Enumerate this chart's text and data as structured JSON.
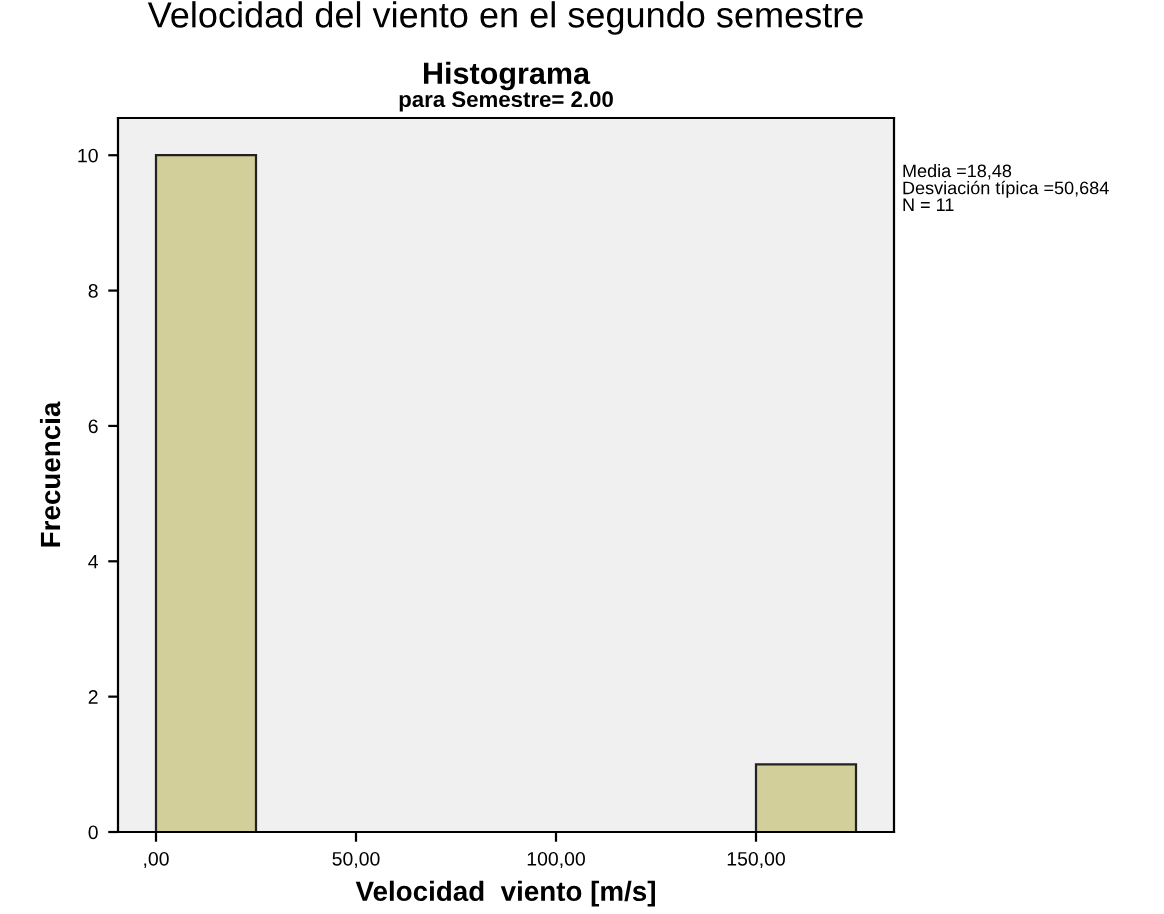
{
  "chart_data": {
    "type": "histogram",
    "title": "Histograma",
    "subtitle": "para Semestre= 2.00",
    "xlabel": "Velocidad  viento [m/s]",
    "ylabel": "Frecuencia",
    "annotations": [
      "Velocidad del viento en el segundo semestre",
      "Media =18,48\nDesviación típica =50,684\nN = 11"
    ],
    "bins": [
      0,
      25,
      50,
      75,
      100,
      125,
      150,
      175
    ],
    "values": [
      10,
      0,
      0,
      0,
      0,
      0,
      1
    ],
    "color": "#d3cf9a",
    "xlim": [
      -9.5,
      184.5
    ],
    "xticks": [
      {
        "value": 0,
        "label": ",00"
      },
      {
        "value": 50,
        "label": "50,00"
      },
      {
        "value": 100,
        "label": "100,00"
      },
      {
        "value": 150,
        "label": "150,00"
      }
    ],
    "ylim": [
      0,
      10.55
    ],
    "yticks": [
      0,
      2,
      4,
      6,
      8,
      10
    ],
    "grid": false
  }
}
